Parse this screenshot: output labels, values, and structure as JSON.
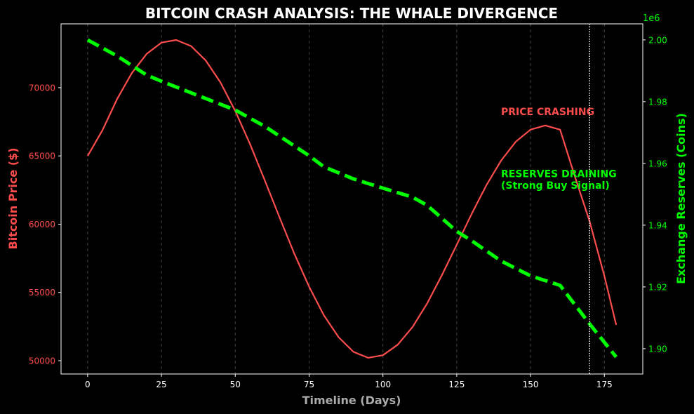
{
  "chart_data": {
    "type": "line",
    "title": "BITCOIN CRASH ANALYSIS: THE WHALE DIVERGENCE",
    "xlabel": "Timeline (Days)",
    "ylabel_left": "Bitcoin Price ($)",
    "ylabel_right": "Exchange Reserves (Coins)",
    "right_axis_offset_label": "1e6",
    "xlim": [
      -9,
      188
    ],
    "ylim_left": [
      49024,
      74674
    ],
    "ylim_right": [
      1.8918,
      2.0052
    ],
    "x_ticks": [
      "0",
      "25",
      "50",
      "75",
      "100",
      "125",
      "150",
      "175"
    ],
    "y_left_ticks": [
      "50000",
      "55000",
      "60000",
      "65000",
      "70000"
    ],
    "y_right_ticks": [
      "1.90",
      "1.92",
      "1.94",
      "1.96",
      "1.98",
      "2.00"
    ],
    "grid": "vertical dashed",
    "colors": {
      "background": "#000000",
      "price": "#ff4d4d",
      "reserves": "#00ff00",
      "xlabel": "#aaaaaa",
      "marker_line": "#ffffff"
    },
    "series": [
      {
        "name": "Bitcoin Price",
        "axis": "left",
        "style": "solid",
        "x": [
          0,
          5,
          10,
          15,
          20,
          25,
          30,
          35,
          40,
          45,
          50,
          55,
          60,
          65,
          70,
          75,
          80,
          85,
          90,
          95,
          100,
          105,
          110,
          115,
          120,
          125,
          130,
          135,
          140,
          145,
          150,
          155,
          160,
          165,
          170,
          175,
          179
        ],
        "y": [
          65000,
          66870,
          69180,
          71080,
          72475,
          73300,
          73490,
          73050,
          71990,
          70380,
          68290,
          65870,
          63200,
          60490,
          57840,
          55420,
          53330,
          51720,
          50650,
          50210,
          50400,
          51170,
          52460,
          54200,
          56270,
          58490,
          60730,
          62840,
          64650,
          66050,
          66930,
          67230,
          66920,
          63500,
          60200,
          56200,
          52620
        ]
      },
      {
        "name": "Exchange Reserves",
        "axis": "right",
        "style": "dashed",
        "x": [
          0,
          10,
          20,
          25,
          50,
          60,
          75,
          80,
          90,
          100,
          110,
          115,
          125,
          130,
          140,
          150,
          160,
          170,
          179
        ],
        "y": [
          2.0,
          1.9948,
          1.9886,
          1.9866,
          1.9773,
          1.972,
          1.9625,
          1.9589,
          1.955,
          1.952,
          1.9491,
          1.9464,
          1.938,
          1.935,
          1.9284,
          1.9236,
          1.9205,
          1.908,
          1.8973
        ]
      }
    ],
    "vertical_marker_x": 170,
    "annotations": [
      {
        "text": "PRICE CRASHING",
        "x": 140,
        "y": 68000,
        "axis": "left",
        "color": "#ff4d4d"
      },
      {
        "text": "RESERVES DRAINING",
        "x": 140,
        "y": 1.9555,
        "axis": "right",
        "color": "#00ff00"
      },
      {
        "text": "(Strong Buy Signal)",
        "x": 140,
        "y": 1.9518,
        "axis": "right",
        "color": "#00ff00"
      }
    ]
  }
}
